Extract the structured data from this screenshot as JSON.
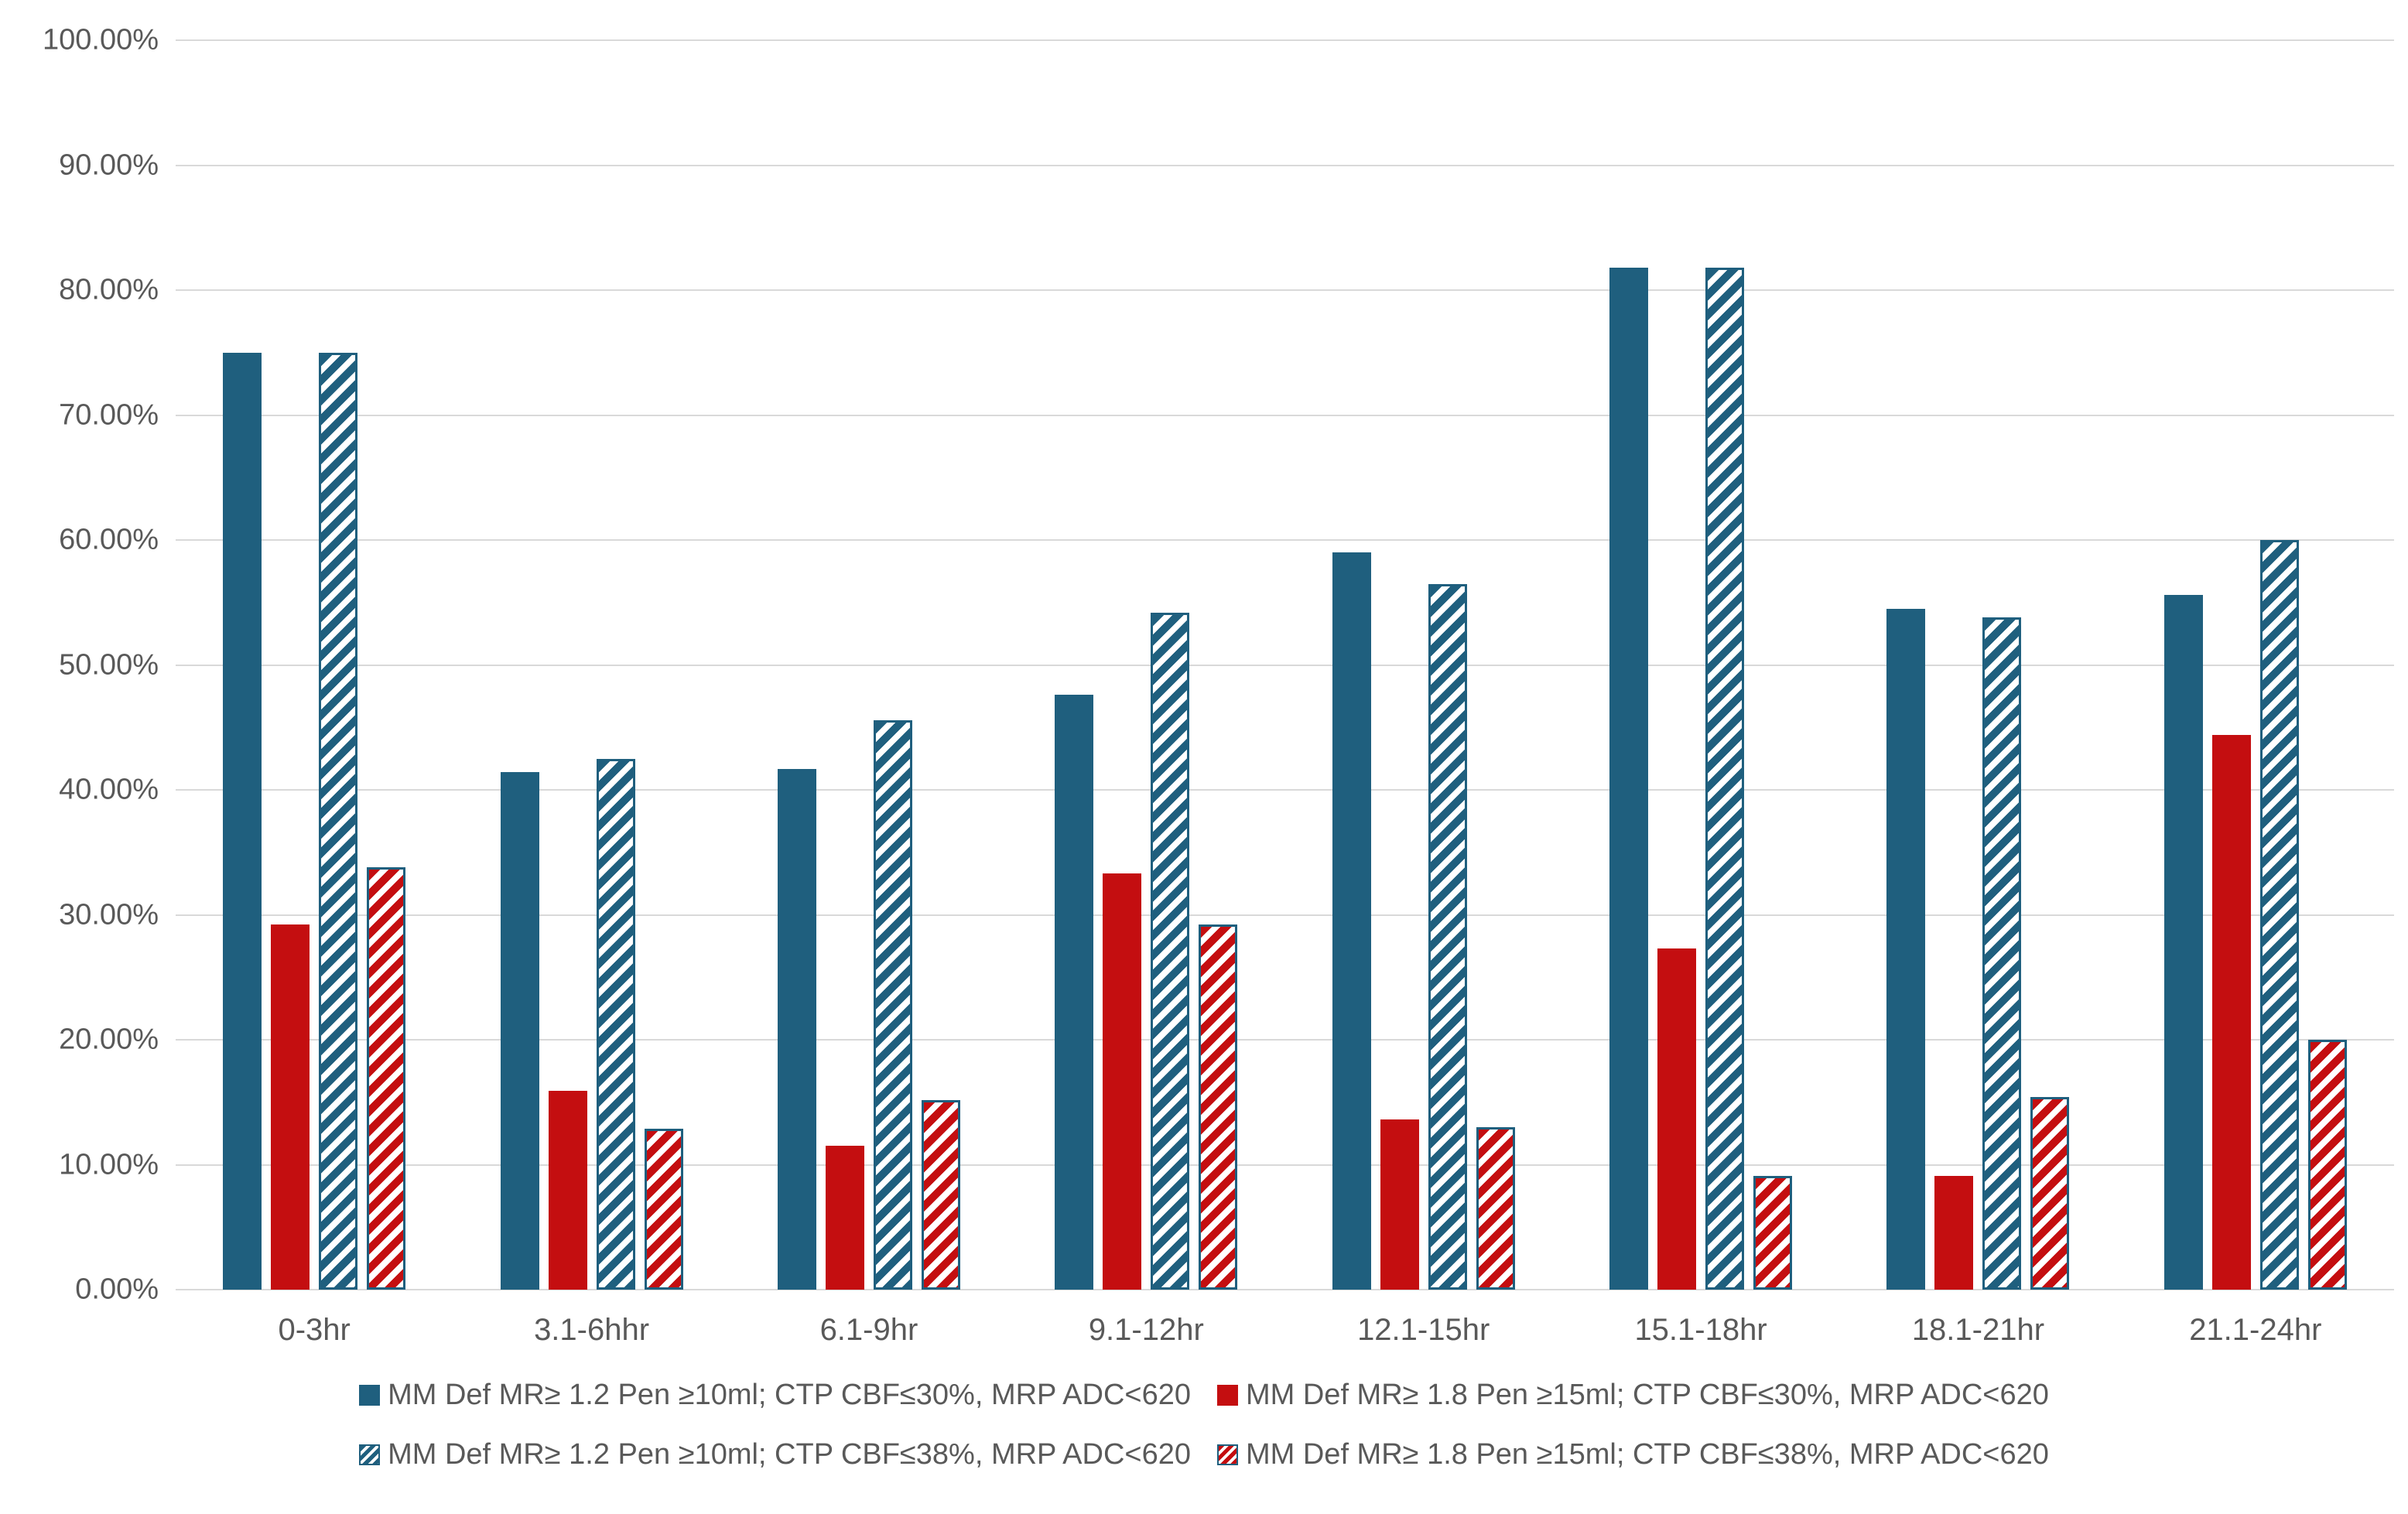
{
  "page": {
    "background": "#FFFFFF"
  },
  "colors": {
    "teal": "#1F5F7E",
    "red": "#C40E10",
    "hatch_border": "#1F5F7E",
    "grid": "#D9D9D9",
    "axis_text": "#595959"
  },
  "chart_data": {
    "type": "bar",
    "title": "",
    "xlabel": "",
    "ylabel": "",
    "categories": [
      "0-3hr",
      "3.1-6hhr",
      "6.1-9hr",
      "9.1-12hr",
      "12.1-15hr",
      "15.1-18hr",
      "18.1-21hr",
      "21.1-24hr"
    ],
    "series": [
      {
        "name": "MM Def MR≥ 1.2 Pen ≥10ml; CTP CBF≤30%, MRP ADC<620",
        "style": "solid",
        "color_key": "teal",
        "values": [
          75.0,
          41.4,
          41.7,
          47.6,
          59.0,
          81.8,
          54.5,
          55.6
        ]
      },
      {
        "name": "MM Def MR≥ 1.8 Pen ≥15ml; CTP CBF≤30%, MRP ADC<620",
        "style": "solid",
        "color_key": "red",
        "values": [
          29.2,
          15.9,
          11.5,
          33.3,
          13.6,
          27.3,
          9.1,
          44.4
        ]
      },
      {
        "name": "MM Def MR≥ 1.2 Pen ≥10ml; CTP CBF≤38%, MRP ADC<620",
        "style": "hatched",
        "color_key": "teal",
        "values": [
          75.0,
          42.5,
          45.6,
          54.2,
          56.5,
          81.8,
          53.8,
          60.0
        ]
      },
      {
        "name": "MM Def MR≥ 1.8 Pen ≥15ml; CTP CBF≤38%, MRP ADC<620",
        "style": "hatched",
        "color_key": "red",
        "values": [
          33.8,
          12.9,
          15.2,
          29.2,
          13.0,
          9.1,
          15.4,
          20.0
        ]
      }
    ],
    "ylim": [
      0,
      100
    ],
    "ytick_step": 10,
    "ytick_labels": [
      "0.00%",
      "10.00%",
      "20.00%",
      "30.00%",
      "40.00%",
      "50.00%",
      "60.00%",
      "70.00%",
      "80.00%",
      "90.00%",
      "100.00%"
    ],
    "grid": true,
    "legend_position": "bottom",
    "legend_rows": [
      [
        0,
        1
      ],
      [
        2,
        3
      ]
    ]
  }
}
